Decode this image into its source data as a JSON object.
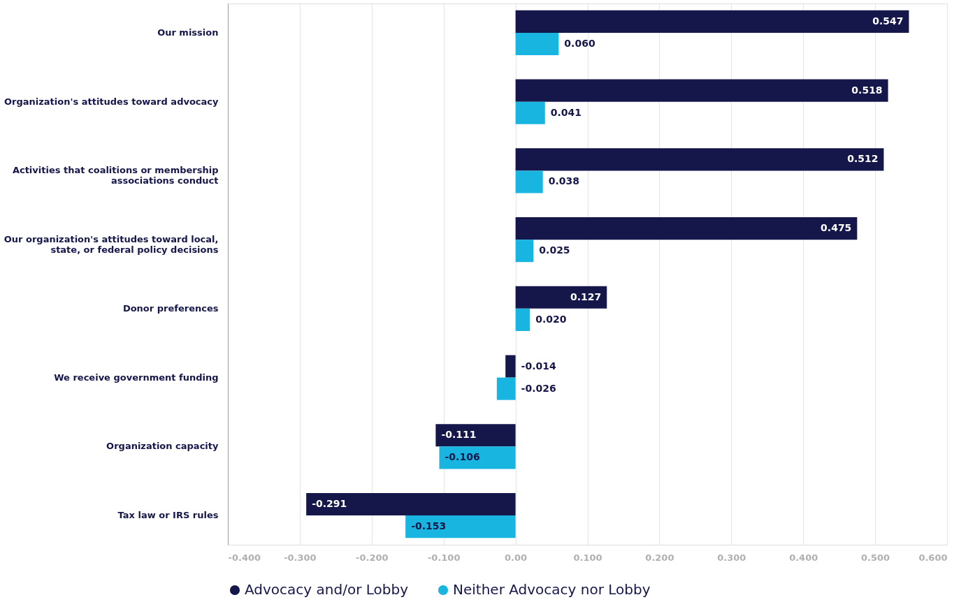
{
  "chart_data": {
    "type": "bar",
    "orientation": "horizontal",
    "categories": [
      "Our mission",
      "Organization's attitudes toward advocacy",
      "Activities that coalitions or membership associations conduct",
      "Our organization's attitudes toward local, state, or federal policy decisions",
      "Donor preferences",
      "We receive government funding",
      "Organization capacity",
      "Tax law or IRS rules"
    ],
    "series": [
      {
        "name": "Advocacy and/or Lobby",
        "color": "#15164a",
        "values": [
          0.547,
          0.518,
          0.512,
          0.475,
          0.127,
          -0.014,
          -0.111,
          -0.291
        ],
        "value_labels": [
          "0.547",
          "0.518",
          "0.512",
          "0.475",
          "0.127",
          "-0.014",
          "-0.111",
          "-0.291"
        ]
      },
      {
        "name": "Neither Advocacy nor Lobby",
        "color": "#17b5e0",
        "values": [
          0.06,
          0.041,
          0.038,
          0.025,
          0.02,
          -0.026,
          -0.106,
          -0.153
        ],
        "value_labels": [
          "0.060",
          "0.041",
          "0.038",
          "0.025",
          "0.020",
          "-0.026",
          "-0.106",
          "-0.153"
        ]
      }
    ],
    "xlim": [
      -0.4,
      0.6
    ],
    "xticks": [
      {
        "value": -0.4,
        "label": "-0.400"
      },
      {
        "value": -0.3,
        "label": "-0.300"
      },
      {
        "value": -0.2,
        "label": "-0.200"
      },
      {
        "value": -0.1,
        "label": "-0.100"
      },
      {
        "value": 0,
        "label": "0.00"
      },
      {
        "value": 0.1,
        "label": "0.100"
      },
      {
        "value": 0.2,
        "label": "0.200"
      },
      {
        "value": 0.3,
        "label": "0.300"
      },
      {
        "value": 0.4,
        "label": "0.400"
      },
      {
        "value": 0.5,
        "label": "0.500"
      },
      {
        "value": 0.6,
        "label": "0.600"
      }
    ],
    "grid": "x",
    "legend": "bottom"
  }
}
